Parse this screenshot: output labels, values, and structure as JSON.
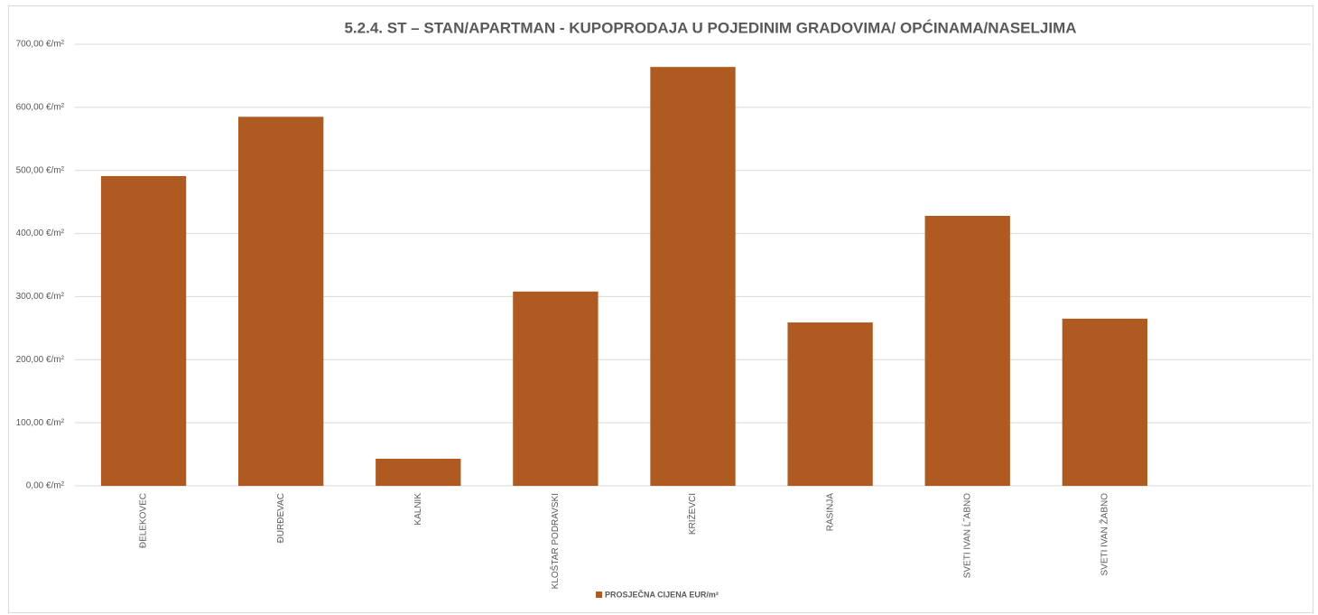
{
  "chart_data": {
    "type": "bar",
    "title": "5.2.4. ST – STAN/APARTMAN - KUPOPRODAJA U POJEDINIM GRADOVIMA/ OPĆINAMA/NASELJIMA",
    "categories": [
      "ĐELEKOVEC",
      "ĐURĐEVAC",
      "KALNIK",
      "KLOŠTAR PODRAVSKI",
      "KRIŽEVCI",
      "RASINJA",
      "SVETI IVAN Ĺ˝ABNO",
      "SVETI IVAN ŽABNO",
      null
    ],
    "series": [
      {
        "name": "PROSJEČNA CIJENA EUR/m²",
        "color": "#ae5a21",
        "values": [
          491,
          585,
          43,
          308,
          664,
          259,
          428,
          265,
          null
        ]
      }
    ],
    "ylim": [
      0,
      700
    ],
    "yticks": [
      {
        "value": 0,
        "label": "0,00 €/m²"
      },
      {
        "value": 100,
        "label": "100,00 €/m²"
      },
      {
        "value": 200,
        "label": "200,00 €/m²"
      },
      {
        "value": 300,
        "label": "300,00 €/m²"
      },
      {
        "value": 400,
        "label": "400,00 €/m²"
      },
      {
        "value": 500,
        "label": "500,00 €/m²"
      },
      {
        "value": 600,
        "label": "600,00 €/m²"
      },
      {
        "value": 700,
        "label": "700,00 €/m²"
      }
    ],
    "grid": true,
    "legend": "bottom"
  }
}
